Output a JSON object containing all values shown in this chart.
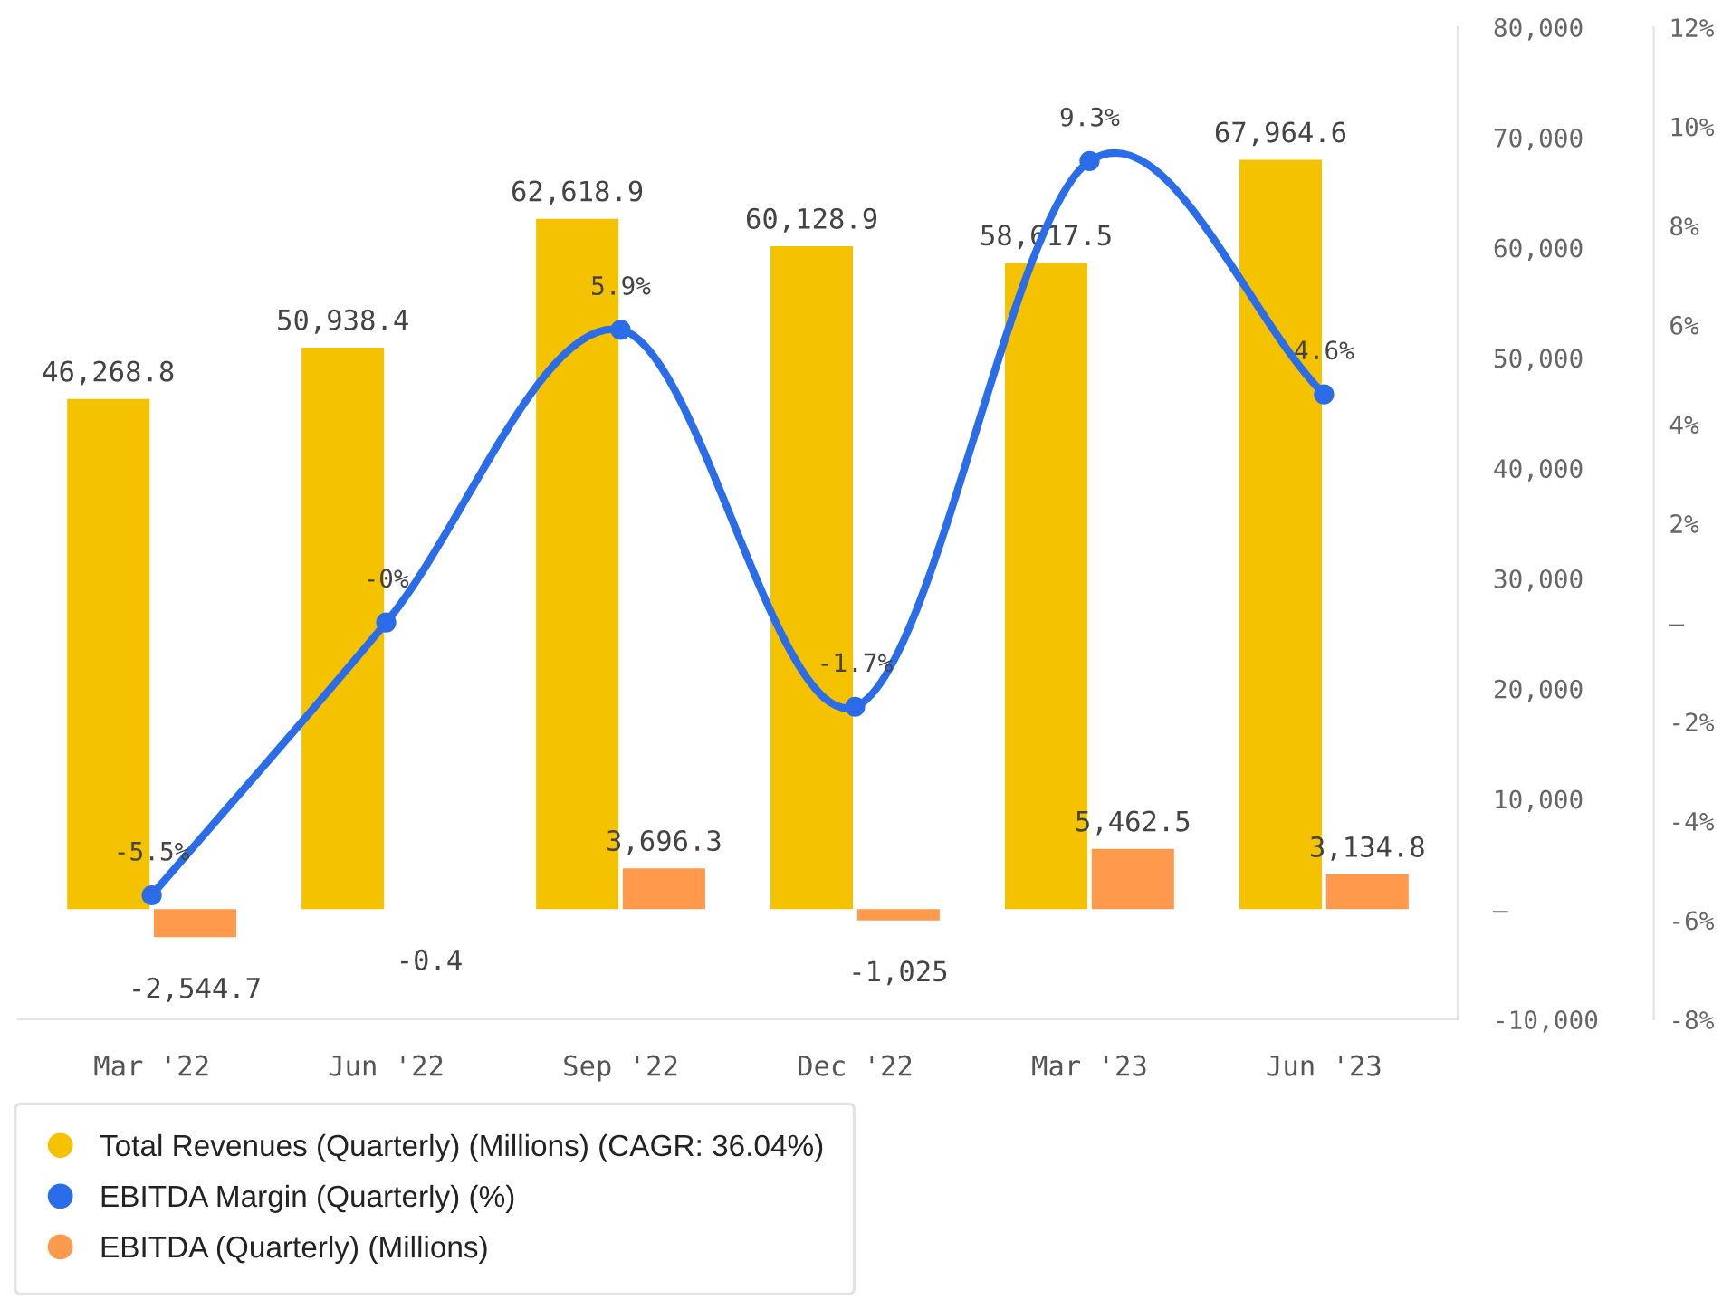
{
  "chart_data": {
    "type": "bar",
    "categories": [
      "Mar '22",
      "Jun '22",
      "Sep '22",
      "Dec '22",
      "Mar '23",
      "Jun '23"
    ],
    "series": [
      {
        "name": "Total Revenues (Quarterly) (Millions) (CAGR: 36.04%)",
        "color": "#f5c200",
        "values": [
          46268.8,
          50938.4,
          62618.9,
          60128.9,
          58617.5,
          67964.6
        ],
        "value_labels": [
          "46,268.8",
          "50,938.4",
          "62,618.9",
          "60,128.9",
          "58,617.5",
          "67,964.6"
        ]
      },
      {
        "name": "EBITDA Margin (Quarterly) (%)",
        "type": "line",
        "axis": "y2",
        "color": "#2b6de8",
        "values": [
          -5.5,
          0,
          5.9,
          -1.7,
          9.3,
          4.6
        ],
        "value_labels": [
          "-5.5%",
          "-0%",
          "5.9%",
          "-1.7%",
          "9.3%",
          "4.6%"
        ]
      },
      {
        "name": "EBITDA (Quarterly) (Millions)",
        "color": "#ff9a4d",
        "values": [
          -2544.7,
          -0.4,
          3696.3,
          -1025,
          5462.5,
          3134.8
        ],
        "value_labels": [
          "-2,544.7",
          "-0.4",
          "3,696.3",
          "-1,025",
          "5,462.5",
          "3,134.8"
        ]
      }
    ],
    "ylim": [
      -10000,
      80000
    ],
    "yticks": [
      {
        "value": -10000,
        "label": "-10,000"
      },
      {
        "value": 0,
        "label": "–"
      },
      {
        "value": 10000,
        "label": "10,000"
      },
      {
        "value": 20000,
        "label": "20,000"
      },
      {
        "value": 30000,
        "label": "30,000"
      },
      {
        "value": 40000,
        "label": "40,000"
      },
      {
        "value": 50000,
        "label": "50,000"
      },
      {
        "value": 60000,
        "label": "60,000"
      },
      {
        "value": 70000,
        "label": "70,000"
      },
      {
        "value": 80000,
        "label": "80,000"
      }
    ],
    "y2lim": [
      -8,
      12
    ],
    "y2ticks": [
      {
        "value": -8,
        "label": "-8%"
      },
      {
        "value": -6,
        "label": "-6%"
      },
      {
        "value": -4,
        "label": "-4%"
      },
      {
        "value": -2,
        "label": "-2%"
      },
      {
        "value": 0,
        "label": "–"
      },
      {
        "value": 2,
        "label": "2%"
      },
      {
        "value": 4,
        "label": "4%"
      },
      {
        "value": 6,
        "label": "6%"
      },
      {
        "value": 8,
        "label": "8%"
      },
      {
        "value": 10,
        "label": "10%"
      },
      {
        "value": 12,
        "label": "12%"
      }
    ],
    "marker": "circle",
    "grid": false,
    "legend": "bottom"
  }
}
